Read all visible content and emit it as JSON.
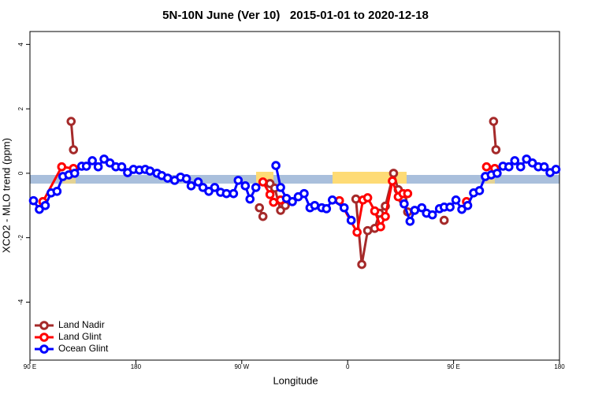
{
  "chart_data": {
    "type": "line",
    "title": "5N-10N June (Ver 10)   2015-01-01 to 2020-12-18",
    "x_label": "Longitude",
    "y_label": "XCO2 - MLO trend (ppm)",
    "xlim": [
      90,
      540
    ],
    "xticks": [
      {
        "value": 90,
        "label": "90 E"
      },
      {
        "value": 180,
        "label": "180"
      },
      {
        "value": 270,
        "label": "90 W"
      },
      {
        "value": 360,
        "label": "0"
      },
      {
        "value": 450,
        "label": "90 E"
      },
      {
        "value": 540,
        "label": "180"
      }
    ],
    "ylim": [
      -5.8,
      4.4
    ],
    "yticks": [
      -4,
      -2,
      0,
      2,
      4
    ],
    "legend": "bottom-left",
    "series": [
      {
        "name": "Land Nadir",
        "color": "#a52a2a",
        "x": [
          125,
          127,
          null,
          285,
          288,
          null,
          294,
          298,
          303,
          307,
          null,
          367,
          372,
          377,
          383,
          387,
          392,
          399,
          403,
          407,
          411,
          null,
          442,
          null,
          484,
          486
        ],
        "values": [
          1.61,
          0.73,
          null,
          -1.07,
          -1.34,
          null,
          -0.32,
          -0.46,
          -1.15,
          -1.0,
          null,
          -0.8,
          -2.83,
          -1.78,
          -1.71,
          -1.24,
          -1.02,
          0,
          -0.51,
          -0.83,
          -1.2,
          null,
          -1.46,
          null,
          1.61,
          0.73
        ]
      },
      {
        "name": "Land Glint",
        "color": "#ff0000",
        "x": [
          101,
          117,
          127,
          null,
          288,
          294,
          297,
          303,
          null,
          353,
          368,
          373,
          377,
          383,
          388,
          392,
          398,
          403,
          407,
          411,
          null,
          461,
          null,
          478,
          485
        ],
        "values": [
          -0.88,
          0.2,
          0.15,
          null,
          -0.27,
          -0.66,
          -0.9,
          -0.83,
          null,
          -0.85,
          -1.83,
          -0.83,
          -0.76,
          -1.17,
          -1.66,
          -1.34,
          -0.24,
          -0.73,
          -0.63,
          -0.63,
          null,
          -0.88,
          null,
          0.2,
          0.15
        ]
      },
      {
        "name": "Ocean Glint",
        "color": "#0000ff",
        "x": [
          93,
          98,
          103,
          108,
          113,
          118,
          123,
          128,
          134,
          138,
          143,
          148,
          153,
          158,
          163,
          168,
          173,
          178,
          183,
          188,
          192,
          198,
          202,
          207,
          213,
          218,
          223,
          227,
          233,
          237,
          242,
          247,
          252,
          257,
          263,
          267,
          273,
          277,
          282,
          null,
          299,
          303,
          308,
          313,
          318,
          323,
          328,
          332,
          338,
          342,
          347,
          357,
          363,
          null,
          408,
          413,
          417,
          423,
          427,
          432,
          438,
          442,
          447,
          452,
          457,
          462,
          467,
          472,
          477,
          482,
          487,
          492,
          497,
          502,
          507,
          512,
          517,
          522,
          527,
          532,
          537
        ],
        "values": [
          -0.85,
          -1.12,
          -1.0,
          -0.61,
          -0.56,
          -0.1,
          -0.05,
          0,
          0.22,
          0.22,
          0.39,
          0.2,
          0.44,
          0.32,
          0.2,
          0.2,
          0.02,
          0.12,
          0.1,
          0.12,
          0.07,
          0,
          -0.07,
          -0.15,
          -0.22,
          -0.12,
          -0.17,
          -0.39,
          -0.27,
          -0.44,
          -0.56,
          -0.44,
          -0.59,
          -0.63,
          -0.63,
          -0.22,
          -0.39,
          -0.8,
          -0.44,
          null,
          0.24,
          -0.44,
          -0.78,
          -0.88,
          -0.73,
          -0.63,
          -1.07,
          -1.0,
          -1.07,
          -1.1,
          -0.83,
          -1.07,
          -1.46,
          null,
          -0.95,
          -1.49,
          -1.15,
          -1.07,
          -1.24,
          -1.29,
          -1.1,
          -1.05,
          -1.05,
          -0.83,
          -1.12,
          -1.0,
          -0.61,
          -0.54,
          -0.1,
          -0.05,
          0,
          0.22,
          0.2,
          0.39,
          0.2,
          0.44,
          0.32,
          0.2,
          0.2,
          0.02,
          0.12
        ]
      }
    ]
  }
}
